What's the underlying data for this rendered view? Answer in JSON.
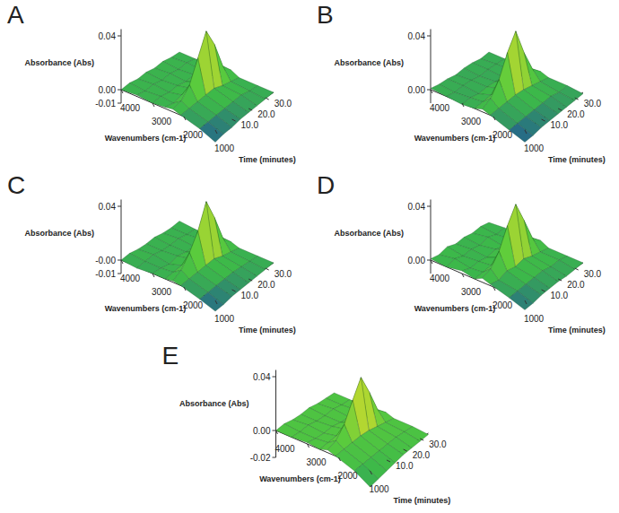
{
  "chart_data": [
    {
      "type": "surface",
      "title": "A",
      "x_label": "Wavenumbers (cm-1)",
      "y_label": "Time (minutes)",
      "z_label": "Absorbance (Abs)",
      "x": [
        4000,
        3500,
        3000,
        2600,
        2350,
        2100,
        1500,
        1000
      ],
      "y": [
        0,
        5,
        10,
        15,
        20,
        25,
        30,
        35
      ],
      "values": [
        [
          0.0,
          0.001,
          0.0,
          0.001,
          0.002,
          0.0,
          -0.004,
          -0.009
        ],
        [
          0.001,
          0.0,
          0.001,
          0.0,
          0.004,
          0.001,
          -0.003,
          -0.007
        ],
        [
          0.0,
          0.001,
          0.0,
          0.002,
          0.012,
          0.002,
          -0.002,
          -0.006
        ],
        [
          0.001,
          0.0,
          0.001,
          0.003,
          0.028,
          0.003,
          -0.001,
          -0.004
        ],
        [
          0.0,
          0.001,
          0.0,
          0.004,
          0.044,
          0.004,
          0.0,
          -0.003
        ],
        [
          0.001,
          0.0,
          0.001,
          0.003,
          0.03,
          0.002,
          0.001,
          -0.002
        ],
        [
          0.0,
          0.001,
          0.0,
          0.001,
          0.01,
          0.001,
          0.0,
          -0.001
        ],
        [
          0.0,
          0.0,
          0.001,
          0.0,
          0.003,
          0.0,
          0.0,
          0.0
        ]
      ],
      "xlim": [
        4000,
        1000
      ],
      "xticks": [
        4000,
        3000,
        2000,
        1000
      ],
      "ylim": [
        0,
        35
      ],
      "yticks": [
        {
          "value": 10,
          "label": "10.0"
        },
        {
          "value": 20,
          "label": "20.0"
        },
        {
          "value": 30,
          "label": "30.0"
        }
      ],
      "zlim": [
        -0.01,
        0.045
      ],
      "zticks": [
        0.04,
        {
          "value": 0,
          "label": "0.00"
        },
        -0.01
      ],
      "colors": [
        "#1d4aa0",
        "#3cb84a",
        "#5ccc3c",
        "#b8d830",
        "#f0a020",
        "#e02a10"
      ]
    },
    {
      "type": "surface",
      "title": "B",
      "x_label": "Wavenumbers (cm-1)",
      "y_label": "Time (minutes)",
      "z_label": "Absorbance (Abs)",
      "x": [
        4000,
        3500,
        3000,
        2600,
        2350,
        2100,
        1500,
        1000
      ],
      "y": [
        0,
        5,
        10,
        15,
        20,
        25,
        30,
        35
      ],
      "values": [
        [
          0.001,
          0.0,
          -0.001,
          0.0,
          0.002,
          0.0,
          -0.005,
          -0.009
        ],
        [
          0.0,
          -0.001,
          0.0,
          0.001,
          0.006,
          0.001,
          -0.004,
          -0.008
        ],
        [
          0.0,
          0.0,
          -0.001,
          0.002,
          0.016,
          0.002,
          -0.003,
          -0.006
        ],
        [
          -0.001,
          0.0,
          0.0,
          0.003,
          0.032,
          0.003,
          -0.002,
          -0.005
        ],
        [
          0.0,
          -0.001,
          0.0,
          0.004,
          0.044,
          0.003,
          -0.001,
          -0.004
        ],
        [
          0.0,
          0.0,
          -0.001,
          0.002,
          0.024,
          0.002,
          0.0,
          -0.003
        ],
        [
          -0.001,
          0.0,
          0.0,
          0.001,
          0.008,
          0.001,
          -0.001,
          -0.002
        ],
        [
          0.0,
          0.0,
          0.0,
          0.0,
          0.002,
          0.0,
          0.0,
          -0.001
        ]
      ],
      "xlim": [
        4000,
        1000
      ],
      "xticks": [
        4000,
        3000,
        2000,
        1000
      ],
      "ylim": [
        0,
        35
      ],
      "yticks": [
        {
          "value": 10,
          "label": "10.0"
        },
        {
          "value": 20,
          "label": "20.0"
        },
        {
          "value": 30,
          "label": "30.0"
        }
      ],
      "zlim": [
        -0.01,
        0.045
      ],
      "zticks": [
        0.04,
        {
          "value": 0,
          "label": "0.00"
        }
      ],
      "colors": [
        "#1d4aa0",
        "#3cb84a",
        "#5ccc3c",
        "#b8d830",
        "#f0a020",
        "#e02a10"
      ]
    },
    {
      "type": "surface",
      "title": "C",
      "x_label": "Wavenumbers (cm-1)",
      "y_label": "Time (minutes)",
      "z_label": "Absorbance (Abs)",
      "x": [
        4000,
        3500,
        3000,
        2600,
        2350,
        2100,
        1500,
        1000
      ],
      "y": [
        0,
        5,
        10,
        15,
        20,
        25,
        30,
        35
      ],
      "values": [
        [
          0.0,
          -0.001,
          0.0,
          0.0,
          0.001,
          0.0,
          -0.004,
          -0.008
        ],
        [
          0.001,
          0.0,
          0.0,
          0.001,
          0.005,
          0.001,
          -0.003,
          -0.007
        ],
        [
          0.0,
          0.001,
          -0.001,
          0.002,
          0.014,
          0.002,
          -0.002,
          -0.005
        ],
        [
          0.0,
          0.0,
          0.001,
          0.003,
          0.026,
          0.003,
          -0.001,
          -0.004
        ],
        [
          0.001,
          0.0,
          0.0,
          0.004,
          0.044,
          0.004,
          0.0,
          -0.003
        ],
        [
          0.0,
          0.001,
          0.0,
          0.003,
          0.028,
          0.002,
          0.0,
          -0.002
        ],
        [
          0.0,
          0.0,
          0.001,
          0.001,
          0.009,
          0.001,
          0.0,
          -0.001
        ],
        [
          0.001,
          0.0,
          0.0,
          0.0,
          0.002,
          0.0,
          0.0,
          0.0
        ]
      ],
      "xlim": [
        4000,
        1000
      ],
      "xticks": [
        4000,
        3000,
        2000,
        1000
      ],
      "ylim": [
        0,
        35
      ],
      "yticks": [
        {
          "value": 10,
          "label": "10.0"
        },
        {
          "value": 20,
          "label": "20.0"
        },
        {
          "value": 30,
          "label": "30.0"
        }
      ],
      "zlim": [
        -0.01,
        0.045
      ],
      "zticks": [
        0.04,
        {
          "value": 0,
          "label": "-0.00"
        },
        -0.01
      ],
      "colors": [
        "#1d4aa0",
        "#3cb84a",
        "#5ccc3c",
        "#b8d830",
        "#f0a020",
        "#e02a10"
      ]
    },
    {
      "type": "surface",
      "title": "D",
      "x_label": "Wavenumbers (cm-1)",
      "y_label": "Time (minutes)",
      "z_label": "Absorbance (Abs)",
      "x": [
        4000,
        3500,
        3000,
        2600,
        2350,
        2100,
        1500,
        1000
      ],
      "y": [
        0,
        5,
        10,
        15,
        20,
        25,
        30,
        35
      ],
      "values": [
        [
          0.001,
          0.0,
          0.002,
          0.0,
          0.003,
          0.001,
          -0.003,
          -0.007
        ],
        [
          0.0,
          0.002,
          0.0,
          0.001,
          0.006,
          0.0,
          -0.002,
          -0.006
        ],
        [
          0.002,
          0.0,
          0.001,
          0.002,
          0.015,
          0.003,
          -0.001,
          -0.004
        ],
        [
          0.0,
          0.001,
          0.0,
          0.004,
          0.03,
          0.002,
          0.0,
          -0.003
        ],
        [
          0.001,
          0.0,
          0.002,
          0.005,
          0.042,
          0.004,
          0.001,
          -0.002
        ],
        [
          0.0,
          0.002,
          0.0,
          0.003,
          0.026,
          0.002,
          0.0,
          -0.002
        ],
        [
          0.001,
          0.0,
          0.001,
          0.001,
          0.009,
          0.001,
          0.001,
          -0.001
        ],
        [
          0.0,
          0.001,
          0.0,
          0.0,
          0.003,
          0.0,
          0.0,
          0.0
        ]
      ],
      "xlim": [
        4000,
        1000
      ],
      "xticks": [
        4000,
        3000,
        2000,
        1000
      ],
      "ylim": [
        0,
        35
      ],
      "yticks": [
        {
          "value": 10,
          "label": "10.0"
        },
        {
          "value": 20,
          "label": "20.0"
        },
        {
          "value": 30,
          "label": "30.0"
        }
      ],
      "zlim": [
        -0.01,
        0.045
      ],
      "zticks": [
        0.04,
        {
          "value": 0,
          "label": "0.00"
        }
      ],
      "colors": [
        "#1d4aa0",
        "#3cb84a",
        "#5ccc3c",
        "#b8d830",
        "#f0a020",
        "#e02a10"
      ]
    },
    {
      "type": "surface",
      "title": "E",
      "x_label": "Wavenumbers (cm-1)",
      "y_label": "Time (minutes)",
      "z_label": "Absorbance (Abs)",
      "x": [
        4000,
        3500,
        3000,
        2600,
        2350,
        2100,
        1500,
        1000
      ],
      "y": [
        0,
        5,
        10,
        15,
        20,
        25,
        30,
        35
      ],
      "values": [
        [
          0.0,
          0.0,
          0.001,
          0.0,
          0.002,
          0.0,
          -0.005,
          -0.012
        ],
        [
          0.001,
          0.0,
          0.0,
          0.001,
          0.005,
          0.001,
          -0.004,
          -0.01
        ],
        [
          0.0,
          0.001,
          0.0,
          0.002,
          0.013,
          0.002,
          -0.003,
          -0.008
        ],
        [
          0.0,
          0.0,
          0.001,
          0.003,
          0.027,
          0.003,
          -0.002,
          -0.006
        ],
        [
          0.001,
          0.0,
          0.0,
          0.004,
          0.04,
          0.003,
          -0.001,
          -0.004
        ],
        [
          0.0,
          0.001,
          0.0,
          0.002,
          0.025,
          0.002,
          0.0,
          -0.003
        ],
        [
          0.0,
          0.0,
          0.001,
          0.001,
          0.008,
          0.001,
          0.0,
          -0.002
        ],
        [
          0.0,
          0.0,
          0.0,
          0.0,
          0.002,
          0.0,
          0.0,
          -0.001
        ]
      ],
      "xlim": [
        4000,
        1000
      ],
      "xticks": [
        4000,
        3000,
        2000,
        1000
      ],
      "ylim": [
        0,
        35
      ],
      "yticks": [
        {
          "value": 10,
          "label": "10.0"
        },
        {
          "value": 20,
          "label": "20.0"
        },
        {
          "value": 30,
          "label": "30.0"
        }
      ],
      "zlim": [
        -0.02,
        0.045
      ],
      "zticks": [
        0.04,
        {
          "value": 0,
          "label": "0.00"
        },
        -0.02
      ],
      "colors": [
        "#1d4aa0",
        "#3cb84a",
        "#5ccc3c",
        "#b8d830",
        "#f0a020",
        "#e02a10"
      ]
    }
  ]
}
